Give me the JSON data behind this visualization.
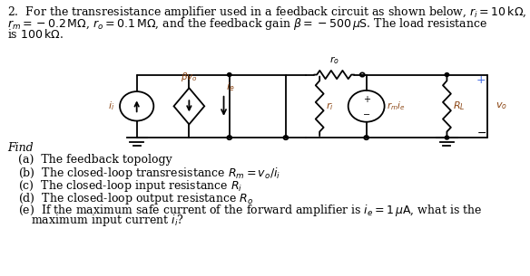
{
  "bg_color": "#ffffff",
  "text_color": "#000000",
  "italic_color": "#8B4513",
  "blue_color": "#4169E1",
  "font_size": 9.0,
  "circuit": {
    "ytop": 2.8,
    "ybot": 0.8,
    "lw": 1.3
  }
}
